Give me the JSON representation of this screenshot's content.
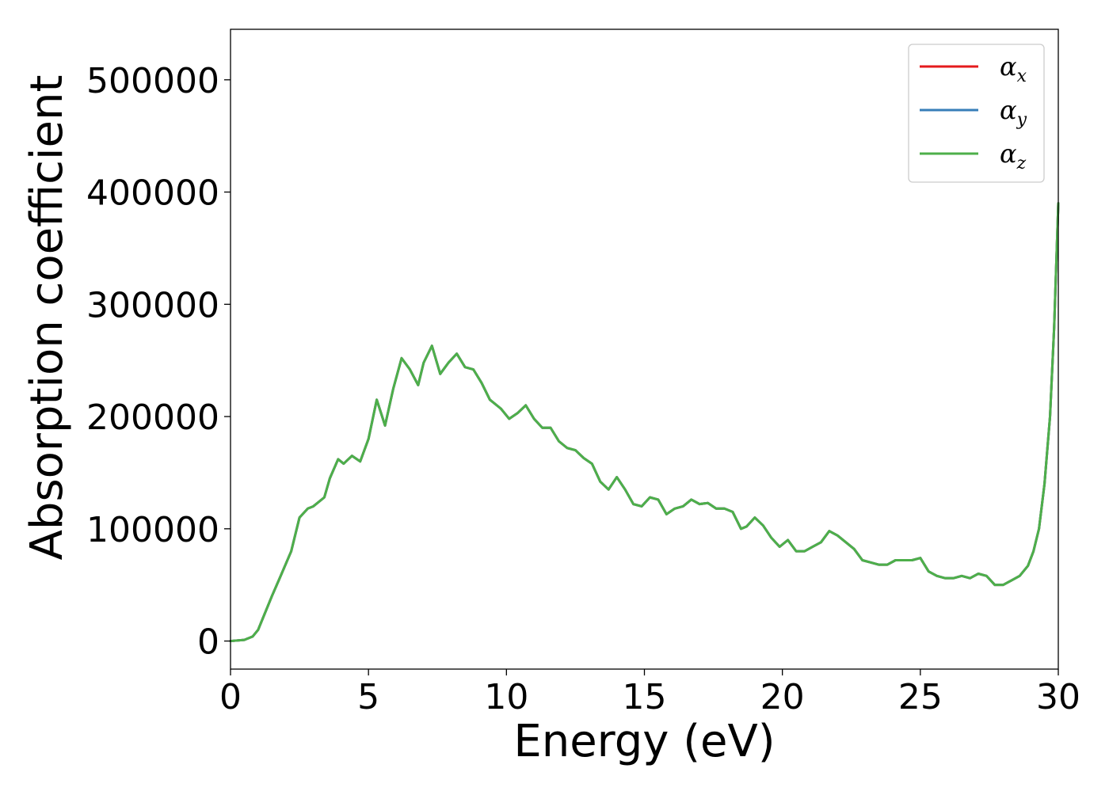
{
  "chart_data": {
    "type": "line",
    "title": "",
    "xlabel": "Energy (eV)",
    "ylabel": "Absorption coefficient",
    "xlim": [
      0,
      30
    ],
    "ylim": [
      -25000,
      545000
    ],
    "xticks": [
      0,
      5,
      10,
      15,
      20,
      25,
      30
    ],
    "xtick_labels": [
      "0",
      "5",
      "10",
      "15",
      "20",
      "25",
      "30"
    ],
    "yticks": [
      0,
      100000,
      200000,
      300000,
      400000,
      500000
    ],
    "ytick_labels": [
      "0",
      "100000",
      "200000",
      "300000",
      "400000",
      "500000"
    ],
    "grid": false,
    "legend_position": "top-right",
    "colors": {
      "alpha_x": "#e41a1c",
      "alpha_y": "#377eb8",
      "alpha_z": "#4daf4a"
    },
    "series": [
      {
        "name": "αx",
        "key": "alpha_x",
        "x": [
          0,
          0.5,
          0.8,
          1.0,
          1.2,
          1.5,
          1.8,
          2.2,
          2.5,
          2.8,
          3.0,
          3.4,
          3.6,
          3.9,
          4.1,
          4.4,
          4.7,
          5.0,
          5.3,
          5.6,
          5.9,
          6.2,
          6.5,
          6.8,
          7.0,
          7.3,
          7.6,
          7.9,
          8.2,
          8.5,
          8.8,
          9.1,
          9.4,
          9.8,
          10.1,
          10.4,
          10.7,
          11.0,
          11.3,
          11.6,
          11.9,
          12.2,
          12.5,
          12.8,
          13.1,
          13.4,
          13.7,
          14.0,
          14.3,
          14.6,
          14.9,
          15.2,
          15.5,
          15.8,
          16.1,
          16.4,
          16.7,
          17.0,
          17.3,
          17.6,
          17.9,
          18.2,
          18.5,
          18.7,
          19.0,
          19.3,
          19.6,
          19.9,
          20.2,
          20.5,
          20.8,
          21.1,
          21.4,
          21.7,
          22.0,
          22.3,
          22.6,
          22.9,
          23.2,
          23.5,
          23.8,
          24.1,
          24.4,
          24.7,
          25.0,
          25.3,
          25.6,
          25.9,
          26.2,
          26.5,
          26.8,
          27.1,
          27.4,
          27.7,
          28.0,
          28.3,
          28.6,
          28.9,
          29.1,
          29.3,
          29.5,
          29.7,
          29.85,
          30.0
        ],
        "values": [
          0,
          1000,
          4000,
          10000,
          22000,
          40000,
          57000,
          80000,
          110000,
          118000,
          120000,
          128000,
          145000,
          162000,
          158000,
          165000,
          160000,
          180000,
          215000,
          192000,
          225000,
          252000,
          242000,
          228000,
          248000,
          263000,
          238000,
          248000,
          256000,
          244000,
          242000,
          230000,
          215000,
          207000,
          198000,
          203000,
          210000,
          198000,
          190000,
          190000,
          178000,
          172000,
          170000,
          163000,
          158000,
          142000,
          135000,
          146000,
          135000,
          122000,
          120000,
          128000,
          126000,
          113000,
          118000,
          120000,
          126000,
          122000,
          123000,
          118000,
          118000,
          115000,
          100000,
          102000,
          110000,
          103000,
          92000,
          84000,
          90000,
          80000,
          80000,
          84000,
          88000,
          98000,
          94000,
          88000,
          82000,
          72000,
          70000,
          68000,
          68000,
          72000,
          72000,
          72000,
          74000,
          62000,
          58000,
          56000,
          56000,
          58000,
          56000,
          60000,
          58000,
          50000,
          50000,
          54000,
          58000,
          67000,
          80000,
          100000,
          140000,
          200000,
          280000,
          390000
        ]
      },
      {
        "name": "αy",
        "key": "alpha_y",
        "x": [
          0,
          0.5,
          0.8,
          1.0,
          1.2,
          1.5,
          1.8,
          2.2,
          2.5,
          2.8,
          3.0,
          3.4,
          3.6,
          3.9,
          4.1,
          4.4,
          4.7,
          5.0,
          5.3,
          5.6,
          5.9,
          6.2,
          6.5,
          6.8,
          7.0,
          7.3,
          7.6,
          7.9,
          8.2,
          8.5,
          8.8,
          9.1,
          9.4,
          9.8,
          10.1,
          10.4,
          10.7,
          11.0,
          11.3,
          11.6,
          11.9,
          12.2,
          12.5,
          12.8,
          13.1,
          13.4,
          13.7,
          14.0,
          14.3,
          14.6,
          14.9,
          15.2,
          15.5,
          15.8,
          16.1,
          16.4,
          16.7,
          17.0,
          17.3,
          17.6,
          17.9,
          18.2,
          18.5,
          18.7,
          19.0,
          19.3,
          19.6,
          19.9,
          20.2,
          20.5,
          20.8,
          21.1,
          21.4,
          21.7,
          22.0,
          22.3,
          22.6,
          22.9,
          23.2,
          23.5,
          23.8,
          24.1,
          24.4,
          24.7,
          25.0,
          25.3,
          25.6,
          25.9,
          26.2,
          26.5,
          26.8,
          27.1,
          27.4,
          27.7,
          28.0,
          28.3,
          28.6,
          28.9,
          29.1,
          29.3,
          29.5,
          29.7,
          29.85,
          30.0
        ],
        "values": [
          0,
          1000,
          4000,
          10000,
          22000,
          40000,
          57000,
          80000,
          110000,
          118000,
          120000,
          128000,
          145000,
          162000,
          158000,
          165000,
          160000,
          180000,
          215000,
          192000,
          225000,
          252000,
          242000,
          228000,
          248000,
          263000,
          238000,
          248000,
          256000,
          244000,
          242000,
          230000,
          215000,
          207000,
          198000,
          203000,
          210000,
          198000,
          190000,
          190000,
          178000,
          172000,
          170000,
          163000,
          158000,
          142000,
          135000,
          146000,
          135000,
          122000,
          120000,
          128000,
          126000,
          113000,
          118000,
          120000,
          126000,
          122000,
          123000,
          118000,
          118000,
          115000,
          100000,
          102000,
          110000,
          103000,
          92000,
          84000,
          90000,
          80000,
          80000,
          84000,
          88000,
          98000,
          94000,
          88000,
          82000,
          72000,
          70000,
          68000,
          68000,
          72000,
          72000,
          72000,
          74000,
          62000,
          58000,
          56000,
          56000,
          58000,
          56000,
          60000,
          58000,
          50000,
          50000,
          54000,
          58000,
          67000,
          80000,
          100000,
          140000,
          200000,
          280000,
          390000
        ]
      },
      {
        "name": "αz",
        "key": "alpha_z",
        "x": [
          0,
          0.5,
          0.8,
          1.0,
          1.2,
          1.5,
          1.8,
          2.2,
          2.5,
          2.8,
          3.0,
          3.4,
          3.6,
          3.9,
          4.1,
          4.4,
          4.7,
          5.0,
          5.3,
          5.6,
          5.9,
          6.2,
          6.5,
          6.8,
          7.0,
          7.3,
          7.6,
          7.9,
          8.2,
          8.5,
          8.8,
          9.1,
          9.4,
          9.8,
          10.1,
          10.4,
          10.7,
          11.0,
          11.3,
          11.6,
          11.9,
          12.2,
          12.5,
          12.8,
          13.1,
          13.4,
          13.7,
          14.0,
          14.3,
          14.6,
          14.9,
          15.2,
          15.5,
          15.8,
          16.1,
          16.4,
          16.7,
          17.0,
          17.3,
          17.6,
          17.9,
          18.2,
          18.5,
          18.7,
          19.0,
          19.3,
          19.6,
          19.9,
          20.2,
          20.5,
          20.8,
          21.1,
          21.4,
          21.7,
          22.0,
          22.3,
          22.6,
          22.9,
          23.2,
          23.5,
          23.8,
          24.1,
          24.4,
          24.7,
          25.0,
          25.3,
          25.6,
          25.9,
          26.2,
          26.5,
          26.8,
          27.1,
          27.4,
          27.7,
          28.0,
          28.3,
          28.6,
          28.9,
          29.1,
          29.3,
          29.5,
          29.7,
          29.85,
          30.0
        ],
        "values": [
          0,
          1000,
          4000,
          10000,
          22000,
          40000,
          57000,
          80000,
          110000,
          118000,
          120000,
          128000,
          145000,
          162000,
          158000,
          165000,
          160000,
          180000,
          215000,
          192000,
          225000,
          252000,
          242000,
          228000,
          248000,
          263000,
          238000,
          248000,
          256000,
          244000,
          242000,
          230000,
          215000,
          207000,
          198000,
          203000,
          210000,
          198000,
          190000,
          190000,
          178000,
          172000,
          170000,
          163000,
          158000,
          142000,
          135000,
          146000,
          135000,
          122000,
          120000,
          128000,
          126000,
          113000,
          118000,
          120000,
          126000,
          122000,
          123000,
          118000,
          118000,
          115000,
          100000,
          102000,
          110000,
          103000,
          92000,
          84000,
          90000,
          80000,
          80000,
          84000,
          88000,
          98000,
          94000,
          88000,
          82000,
          72000,
          70000,
          68000,
          68000,
          72000,
          72000,
          72000,
          74000,
          62000,
          58000,
          56000,
          56000,
          58000,
          56000,
          60000,
          58000,
          50000,
          50000,
          54000,
          58000,
          67000,
          80000,
          100000,
          140000,
          200000,
          280000,
          390000
        ]
      }
    ],
    "legend": [
      {
        "symbol": "α",
        "subscript": "x",
        "key": "alpha_x"
      },
      {
        "symbol": "α",
        "subscript": "y",
        "key": "alpha_y"
      },
      {
        "symbol": "α",
        "subscript": "z",
        "key": "alpha_z"
      }
    ]
  }
}
